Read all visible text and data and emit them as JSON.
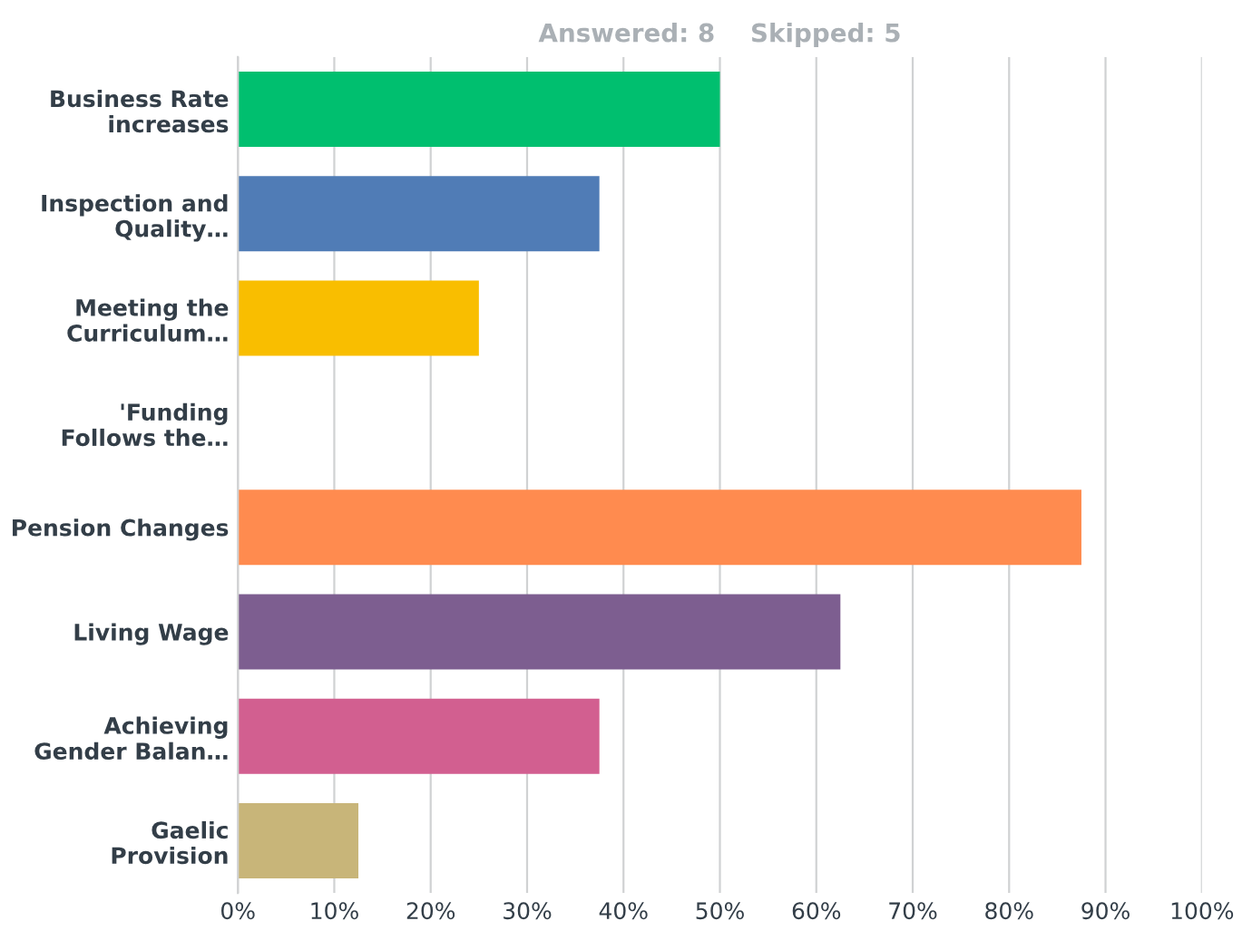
{
  "chart_data": {
    "type": "bar",
    "orientation": "horizontal",
    "title": "Answered: 8    Skipped: 5",
    "categories": [
      "Business Rate\nincreases",
      "Inspection and\nQuality…",
      "Meeting the\nCurriculum…",
      "'Funding\nFollows the…",
      "Pension Changes",
      "Living Wage",
      "Achieving\nGender Balan…",
      "Gaelic\nProvision"
    ],
    "values": [
      50,
      37.5,
      25,
      0,
      87.5,
      62.5,
      37.5,
      12.5
    ],
    "colors": [
      "#00bf6f",
      "#507cb6",
      "#f9be00",
      "#507cb6",
      "#ff8b4f",
      "#7d5e90",
      "#d25f90",
      "#c8b579"
    ],
    "xlim": [
      0,
      100
    ],
    "xticks": [
      {
        "value": 0,
        "label": "0%"
      },
      {
        "value": 10,
        "label": "10%"
      },
      {
        "value": 20,
        "label": "20%"
      },
      {
        "value": 30,
        "label": "30%"
      },
      {
        "value": 40,
        "label": "40%"
      },
      {
        "value": 50,
        "label": "50%"
      },
      {
        "value": 60,
        "label": "60%"
      },
      {
        "value": 70,
        "label": "70%"
      },
      {
        "value": 80,
        "label": "80%"
      },
      {
        "value": 90,
        "label": "90%"
      },
      {
        "value": 100,
        "label": "100%"
      }
    ],
    "grid": "x"
  }
}
